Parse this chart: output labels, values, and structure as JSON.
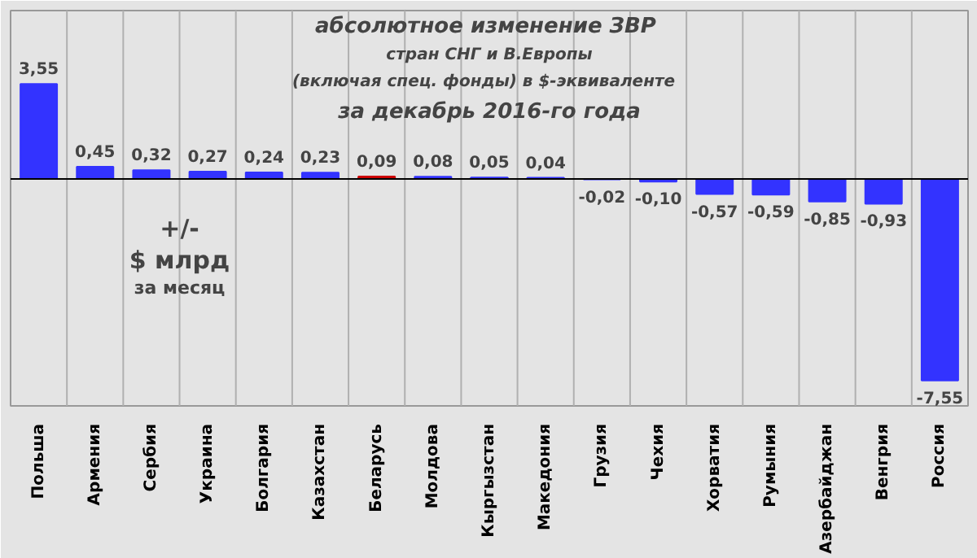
{
  "chart_data": {
    "type": "bar",
    "title": "абсолютное изменение  ЗВР\nстран СНГ и В.Европы\n(включая  спец.  фонды) в $-эквиваленте\nза декабрь 2016-го года",
    "annotations": [
      "+/-\n$ млрд\nза месяц"
    ],
    "categories": [
      "Польша",
      "Армения",
      "Сербия",
      "Украина",
      "Болгария",
      "Казахстан",
      "Беларусь",
      "Молдова",
      "Кыргызстан",
      "Македония",
      "Грузия",
      "Чехия",
      "Хорватия",
      "Румыния",
      "Азербайджан",
      "Венгрия",
      "Россия"
    ],
    "values": [
      3.55,
      0.45,
      0.32,
      0.27,
      0.24,
      0.23,
      0.09,
      0.08,
      0.05,
      0.04,
      -0.02,
      -0.1,
      -0.57,
      -0.59,
      -0.85,
      -0.93,
      -7.55
    ],
    "value_labels": [
      "3,55",
      "0,45",
      "0,32",
      "0,27",
      "0,24",
      "0,23",
      "0,09",
      "0,08",
      "0,05",
      "0,04",
      "-0,02",
      "-0,10",
      "-0,57",
      "-0,59",
      "-0,85",
      "-0,93",
      "-7,55"
    ],
    "colors": [
      "#3333ff",
      "#3333ff",
      "#3333ff",
      "#3333ff",
      "#3333ff",
      "#3333ff",
      "#cc0000",
      "#3333ff",
      "#3333ff",
      "#3333ff",
      "#3333ff",
      "#3333ff",
      "#3333ff",
      "#3333ff",
      "#3333ff",
      "#3333ff",
      "#3333ff"
    ],
    "ylim": [
      -8.5,
      6.3
    ],
    "grid": "x",
    "tick_labels": "x"
  }
}
